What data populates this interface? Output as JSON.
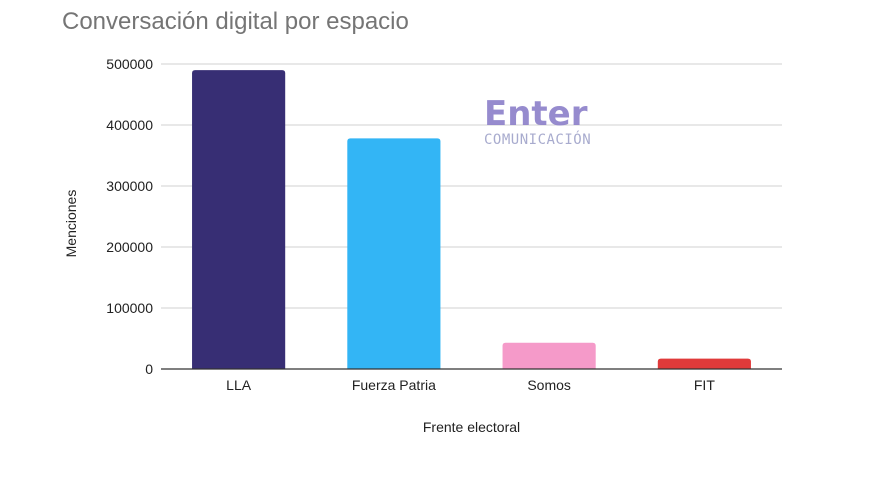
{
  "chart_data": {
    "type": "bar",
    "title": "Conversación digital por espacio",
    "xlabel": "Frente electoral",
    "ylabel": "Menciones",
    "categories": [
      "LLA",
      "Fuerza Patria",
      "Somos",
      "FIT"
    ],
    "values": [
      490000,
      378000,
      43000,
      17000
    ],
    "colors": [
      "#372E74",
      "#33B5F5",
      "#F59AC9",
      "#E03A3A"
    ],
    "ylim": [
      0,
      500000
    ],
    "yticks": [
      0,
      100000,
      200000,
      300000,
      400000,
      500000
    ],
    "ytick_labels": [
      "0",
      "100000",
      "200000",
      "300000",
      "400000",
      "500000"
    ],
    "grid": true,
    "legend": "none"
  },
  "watermark": {
    "main": "Enter",
    "sub": "COMUNICACIÓN",
    "color": "#8B7FC9"
  }
}
